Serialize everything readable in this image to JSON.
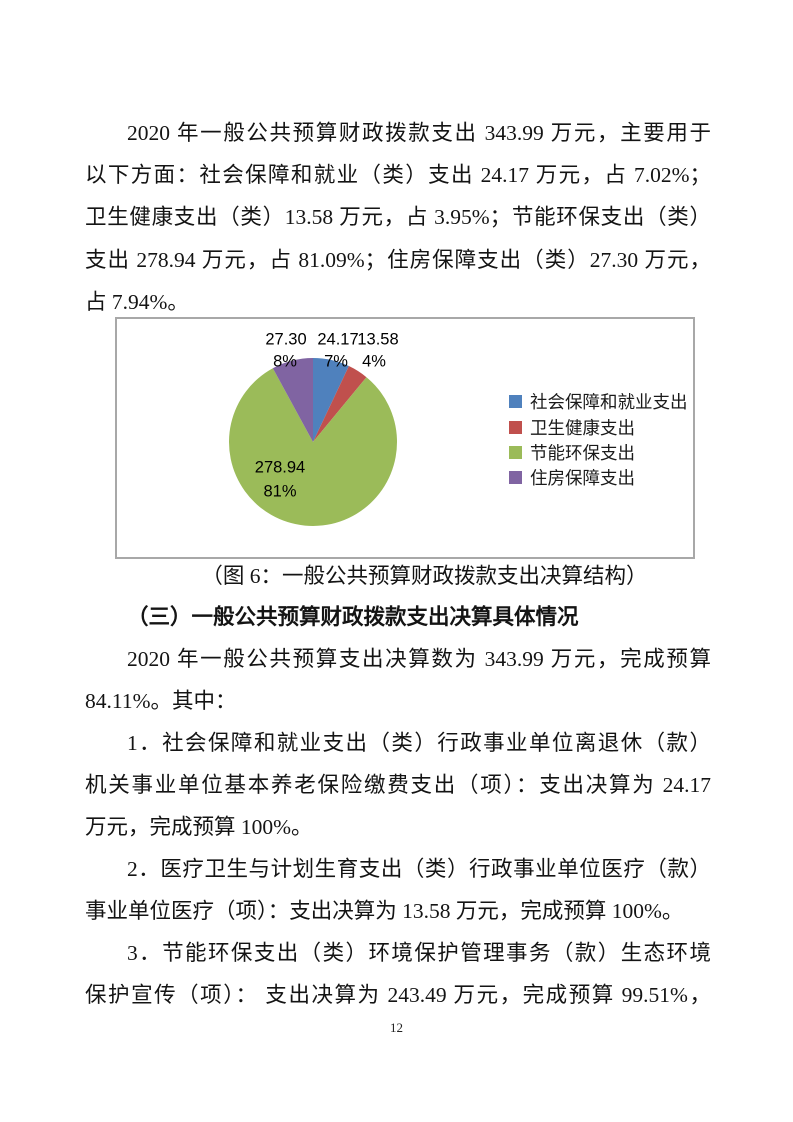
{
  "page": {
    "number": "12"
  },
  "paragraphs": {
    "intro": {
      "lines": [
        "2020 年一般公共预算财政拨款支出 343.99 万元，主要用于",
        "以下方面：社会保障和就业（类）支出 24.17 万元，占 7.02%；",
        "卫生健康支出（类）13.58 万元，占 3.95%；节能环保支出（类）",
        "支出 278.94 万元，占 81.09%；住房保障支出（类）27.30 万元，",
        "占 7.94%。"
      ]
    },
    "summary": {
      "lines": [
        "2020 年一般公共预算支出决算数为 343.99 万元，完成预算",
        "84.11%。其中："
      ]
    },
    "item1": {
      "lines": [
        "1．社会保障和就业支出（类）行政事业单位离退休（款）",
        "机关事业单位基本养老保险缴费支出（项）：支出决算为 24.17",
        "万元，完成预算 100%。"
      ]
    },
    "item2": {
      "lines": [
        "2．医疗卫生与计划生育支出（类）行政事业单位医疗（款）",
        "事业单位医疗（项）：支出决算为 13.58 万元，完成预算 100%。"
      ]
    },
    "item3": {
      "lines": [
        "3．节能环保支出（类）环境保护管理事务（款）生态环境",
        "保护宣传（项）：  支出决算为 243.49 万元，完成预算 99.51%，"
      ]
    }
  },
  "figure": {
    "caption": "（图 6：一般公共预算财政拨款支出决算结构）"
  },
  "section": {
    "heading": "（三）一般公共预算财政拨款支出决算具体情况"
  },
  "chart_data": {
    "type": "pie",
    "title": "一般公共预算财政拨款支出决算结构",
    "categories": [
      "社会保障和就业支出",
      "卫生健康支出",
      "节能环保支出",
      "住房保障支出"
    ],
    "values": [
      24.17,
      13.58,
      278.94,
      27.3
    ],
    "value_labels": [
      "24.17",
      "13.58",
      "278.94",
      "27.30"
    ],
    "percent_labels": [
      "7%",
      "4%",
      "81%",
      "8%"
    ],
    "percents": [
      7.02,
      3.95,
      81.09,
      7.94
    ],
    "colors": [
      "#4F81BD",
      "#C0504D",
      "#9BBB59",
      "#8064A2"
    ],
    "total": 343.99,
    "unit": "万元",
    "legend_position": "right",
    "start_angle_deg": 0,
    "direction": "clockwise"
  }
}
